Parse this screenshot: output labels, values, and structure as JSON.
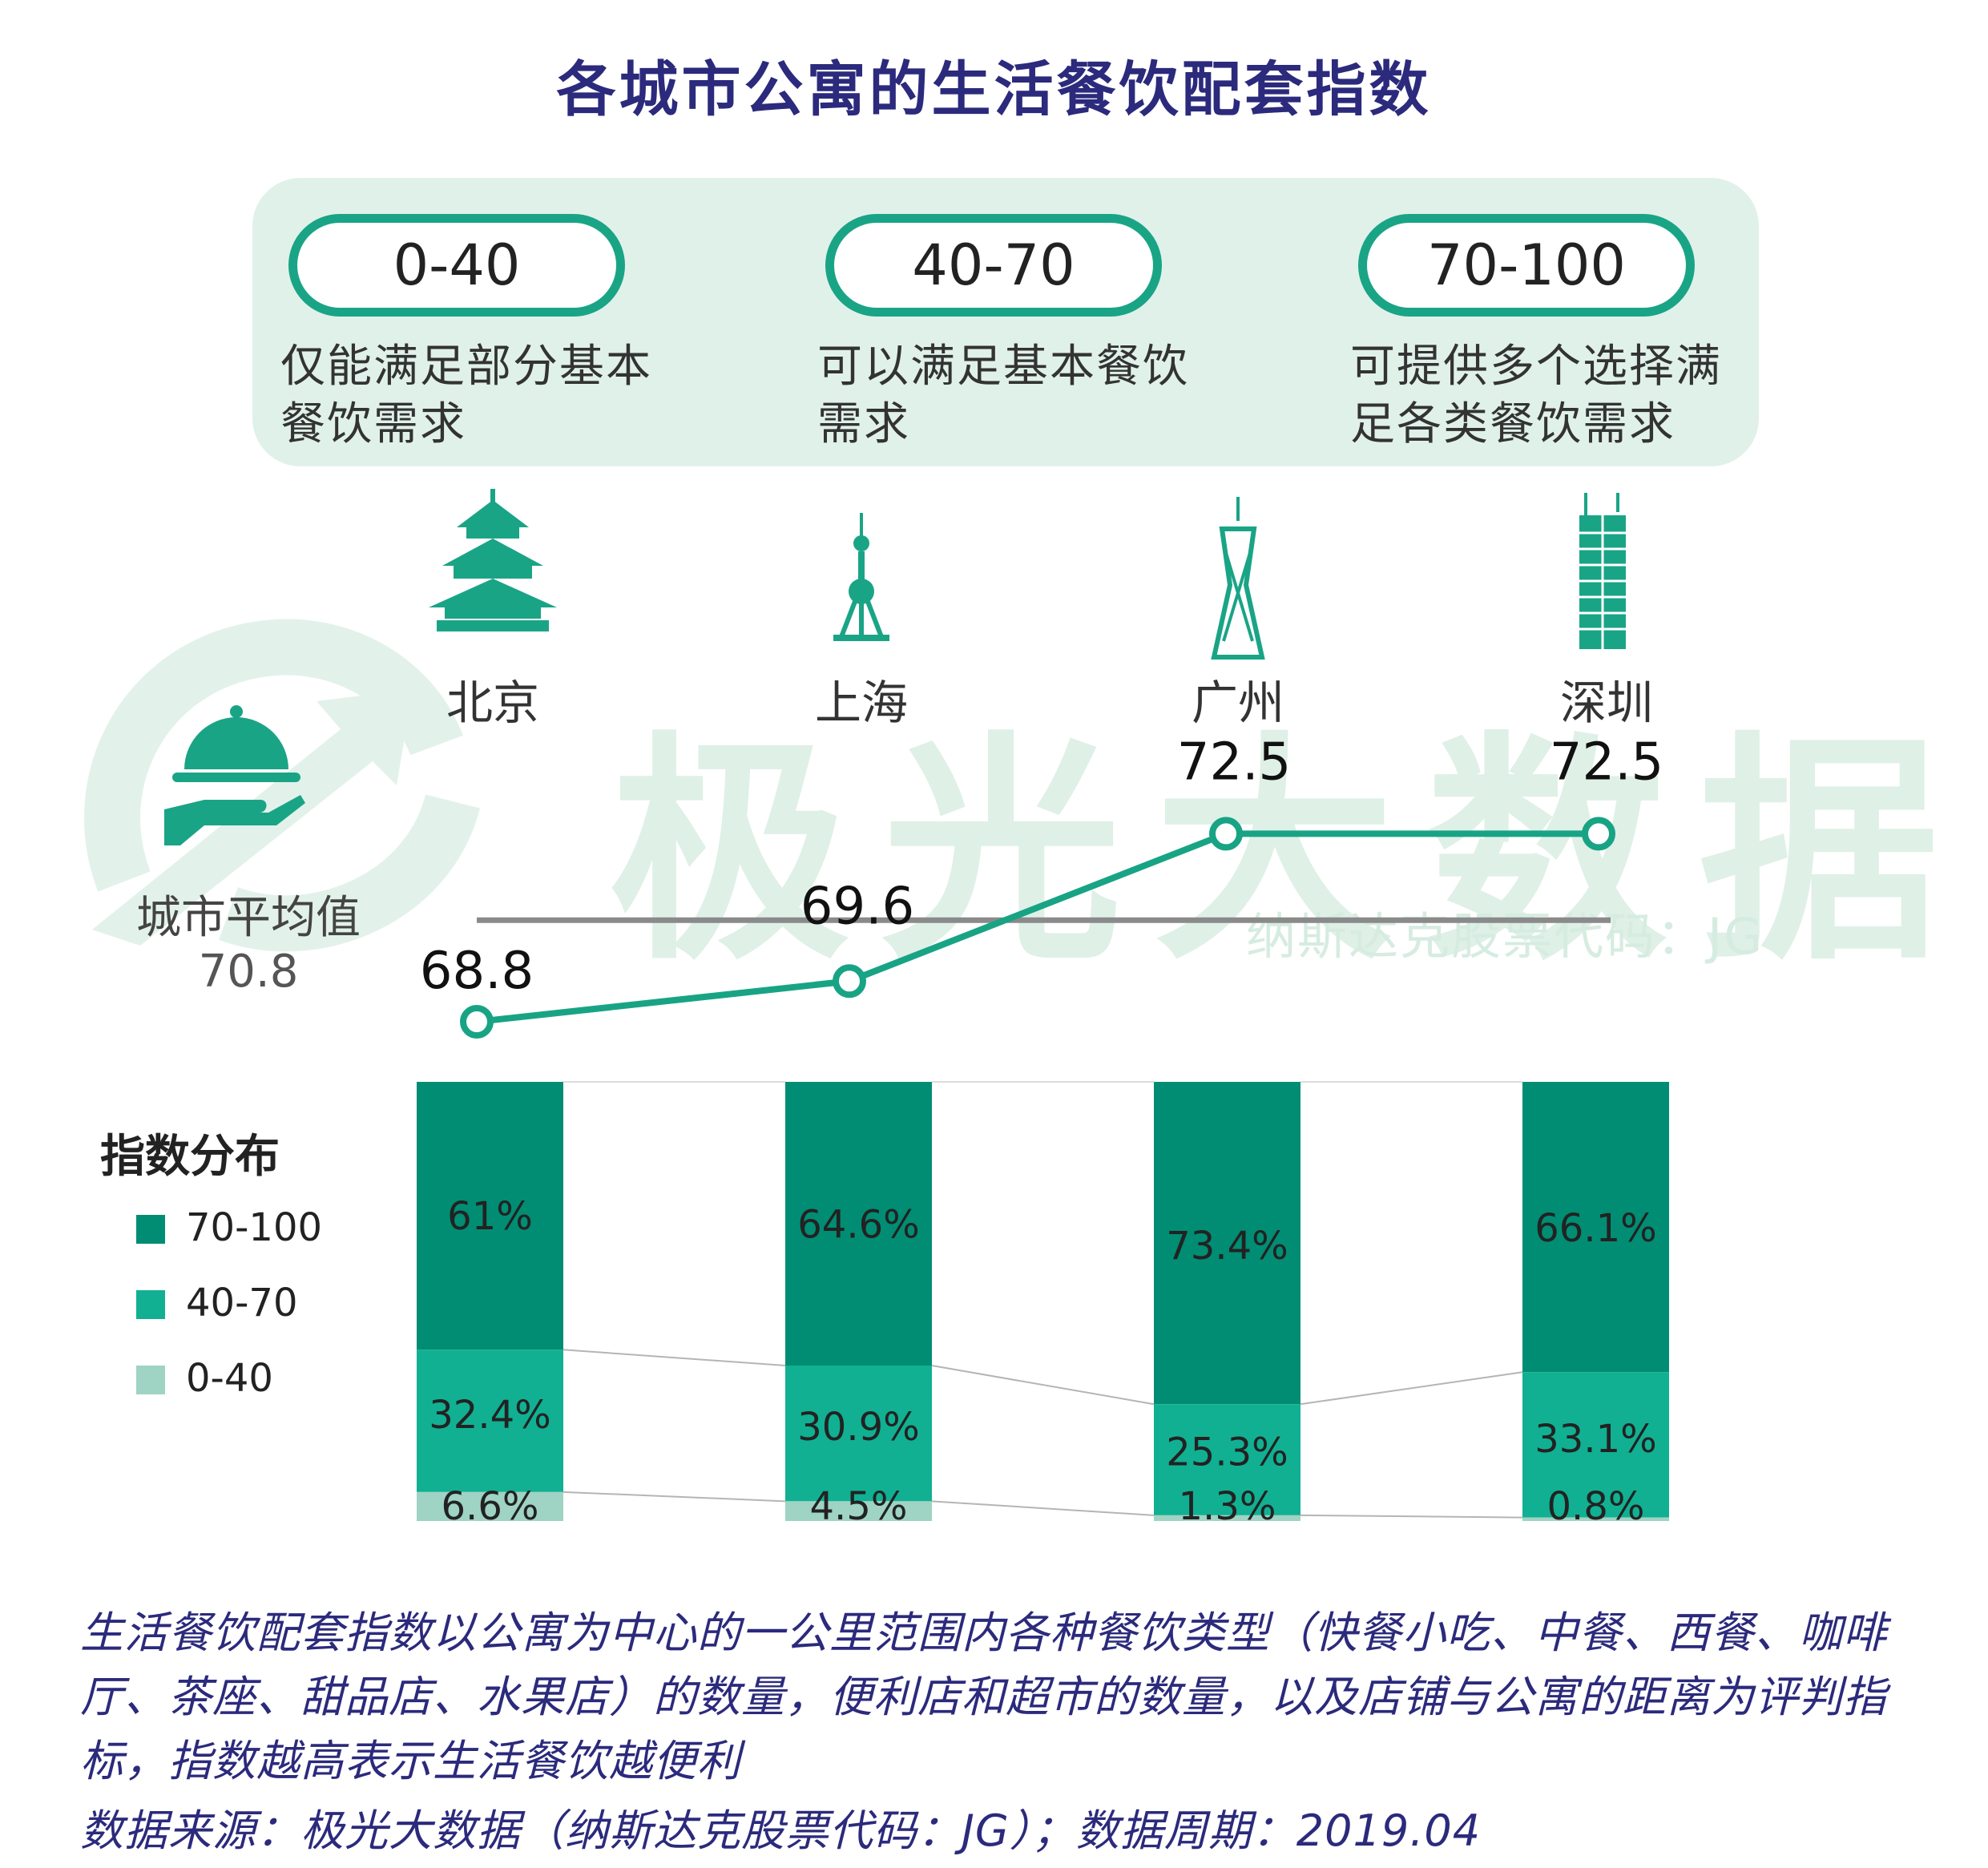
{
  "title": "各城市公寓的生活餐饮配套指数",
  "ranges": [
    {
      "label": "0-40",
      "desc": "仅能满足部分基本餐饮需求"
    },
    {
      "label": "40-70",
      "desc": "可以满足基本餐饮需求"
    },
    {
      "label": "70-100",
      "desc": "可提供多个选择满足各类餐饮需求"
    }
  ],
  "cities": [
    {
      "name": "北京",
      "icon": "temple-of-heaven-icon"
    },
    {
      "name": "上海",
      "icon": "oriental-pearl-tower-icon"
    },
    {
      "name": "广州",
      "icon": "canton-tower-icon"
    },
    {
      "name": "深圳",
      "icon": "skyscraper-icon"
    }
  ],
  "watermark": {
    "brand": "极光大数据",
    "stock": "纳斯达克股票代码：JG"
  },
  "average": {
    "label": "城市平均值",
    "value": "70.8"
  },
  "distribution_title": "指数分布",
  "colors": {
    "dark": "#008d73",
    "mid": "#11b092",
    "light": "#9fd3c4",
    "line": "#18a484",
    "avg_line": "#888888"
  },
  "chart_data": [
    {
      "type": "line",
      "categories": [
        "北京",
        "上海",
        "广州",
        "深圳"
      ],
      "series": [
        {
          "values": [
            68.8,
            69.6,
            72.5,
            72.5
          ]
        }
      ],
      "value_labels": [
        "68.8",
        "69.6",
        "72.5",
        "72.5"
      ],
      "reference_line": {
        "value": 70.8,
        "label": "城市平均值"
      }
    },
    {
      "type": "bar",
      "stacked": true,
      "normalized": true,
      "categories": [
        "北京",
        "上海",
        "广州",
        "深圳"
      ],
      "series": [
        {
          "name": "70-100",
          "values": [
            61,
            64.6,
            73.4,
            66.1
          ],
          "labels": [
            "61%",
            "64.6%",
            "73.4%",
            "66.1%"
          ]
        },
        {
          "name": "40-70",
          "values": [
            32.4,
            30.9,
            25.3,
            33.1
          ],
          "labels": [
            "32.4%",
            "30.9%",
            "25.3%",
            "33.1%"
          ]
        },
        {
          "name": "0-40",
          "values": [
            6.6,
            4.5,
            1.3,
            0.8
          ],
          "labels": [
            "6.6%",
            "4.5%",
            "1.3%",
            "0.8%"
          ]
        }
      ]
    }
  ],
  "footnote": "生活餐饮配套指数以公寓为中心的一公里范围内各种餐饮类型（快餐小吃、中餐、西餐、咖啡厅、茶座、甜品店、水果店）的数量，便利店和超市的数量，以及店铺与公寓的距离为评判指标，指数越高表示生活餐饮越便利",
  "source": "数据来源：极光大数据（纳斯达克股票代码：JG）；数据周期：2019.04"
}
